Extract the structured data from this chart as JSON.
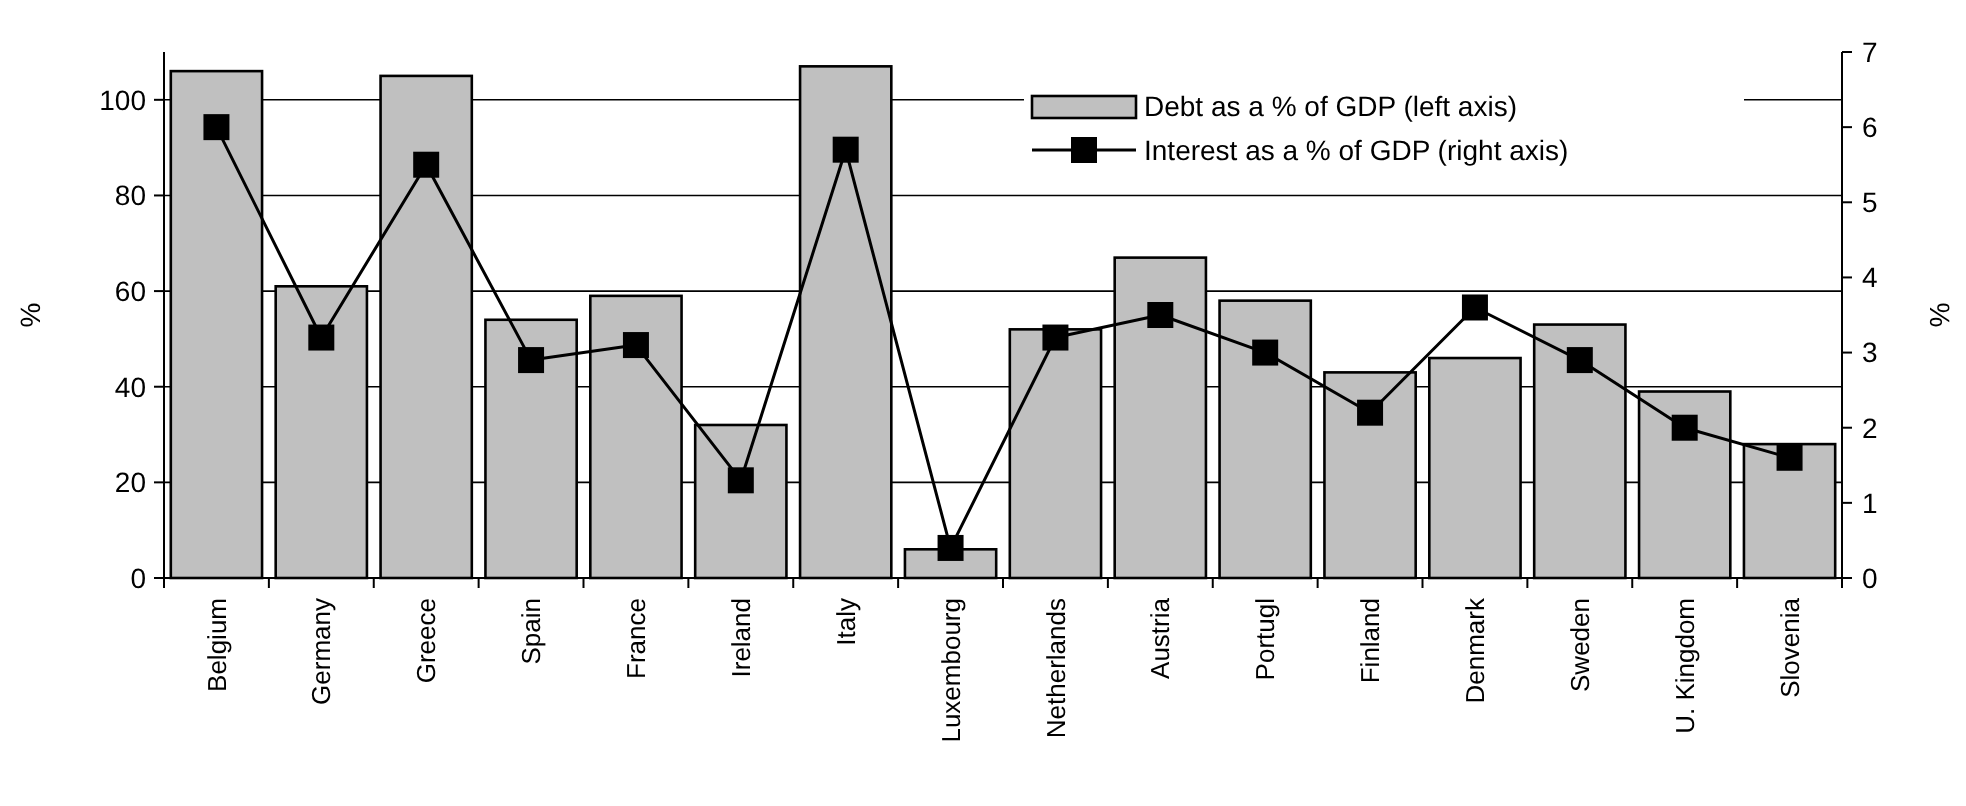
{
  "chart_data": {
    "type": "bar",
    "ylabel": "%",
    "y2label": "%",
    "categories": [
      "Belgium",
      "Germany",
      "Greece",
      "Spain",
      "France",
      "Ireland",
      "Italy",
      "Luxembourg",
      "Netherlands",
      "Austria",
      "Portugl",
      "Finland",
      "Denmark",
      "Sweden",
      "U. Kingdom",
      "Slovenia"
    ],
    "series": [
      {
        "name": "Debt as a % of GDP (left axis)",
        "color": "#c0c0c0",
        "values": [
          106,
          61,
          105,
          54,
          59,
          32,
          107,
          6,
          52,
          67,
          58,
          43,
          46,
          53,
          39,
          28
        ]
      },
      {
        "name": "Interest as a % of GDP (right axis)",
        "type": "line",
        "axis": "y2",
        "color": "#000000",
        "marker": "square",
        "values": [
          6.0,
          3.2,
          5.5,
          2.9,
          3.1,
          1.3,
          5.7,
          0.4,
          3.2,
          3.5,
          3.0,
          2.2,
          3.6,
          2.9,
          2.0,
          1.6
        ]
      }
    ],
    "ylim": [
      0,
      110
    ],
    "yticks": [
      0,
      20,
      40,
      60,
      80,
      100
    ],
    "y2lim": [
      0,
      7
    ],
    "y2ticks": [
      0,
      1,
      2,
      3,
      4,
      5,
      6,
      7
    ],
    "grid": "y",
    "legend": "top right",
    "line_style": "solid"
  }
}
